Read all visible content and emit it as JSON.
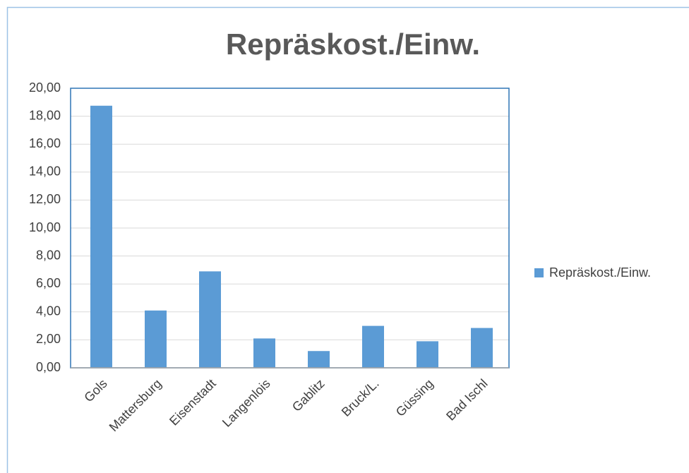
{
  "chart_data": {
    "type": "bar",
    "title": "Repräskost./Einw.",
    "categories": [
      "Gols",
      "Mattersburg",
      "Eisenstadt",
      "Langenlois",
      "Gablitz",
      "Bruck/L.",
      "Güssing",
      "Bad Ischl"
    ],
    "series": [
      {
        "name": "Repräskost./Einw.",
        "color": "#5b9bd5",
        "values": [
          18.75,
          4.1,
          6.9,
          2.1,
          1.2,
          3.0,
          1.9,
          2.85
        ]
      }
    ],
    "ylim": [
      0,
      20
    ],
    "yticks": [
      {
        "value": 0,
        "label": "0,00"
      },
      {
        "value": 2,
        "label": "2,00"
      },
      {
        "value": 4,
        "label": "4,00"
      },
      {
        "value": 6,
        "label": "6,00"
      },
      {
        "value": 8,
        "label": "8,00"
      },
      {
        "value": 10,
        "label": "10,00"
      },
      {
        "value": 12,
        "label": "12,00"
      },
      {
        "value": 14,
        "label": "14,00"
      },
      {
        "value": 16,
        "label": "16,00"
      },
      {
        "value": 18,
        "label": "18,00"
      },
      {
        "value": 20,
        "label": "20,00"
      }
    ],
    "grid": true,
    "legend": "right"
  }
}
